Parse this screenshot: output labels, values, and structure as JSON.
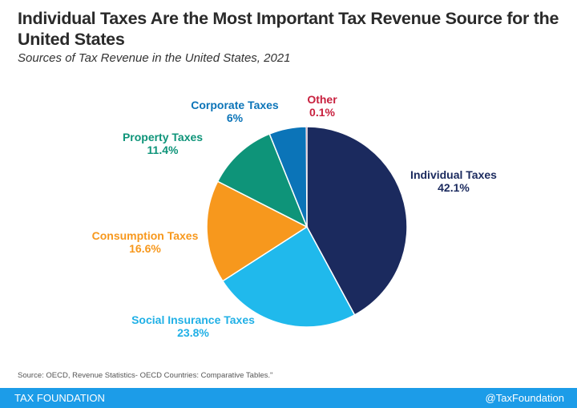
{
  "title": "Individual Taxes Are the Most Important Tax Revenue Source for the United States",
  "subtitle": "Sources of Tax Revenue in the United States, 2021",
  "chart_data": {
    "type": "pie",
    "start": "top, clockwise",
    "slices": [
      {
        "name": "Individual Taxes",
        "value": 42.1,
        "label": "42.1%",
        "color": "#1b2a5e"
      },
      {
        "name": "Social Insurance Taxes",
        "value": 23.8,
        "label": "23.8%",
        "color": "#20b9ec"
      },
      {
        "name": "Consumption Taxes",
        "value": 16.6,
        "label": "16.6%",
        "color": "#f7981d"
      },
      {
        "name": "Property Taxes",
        "value": 11.4,
        "label": "11.4%",
        "color": "#0e9479"
      },
      {
        "name": "Corporate Taxes",
        "value": 6,
        "label": "6%",
        "color": "#0b74b8"
      },
      {
        "name": "Other",
        "value": 0.1,
        "label": "0.1%",
        "color": "#c8203e"
      }
    ]
  },
  "source": "Source: OECD, Revenue Statistics- OECD Countries: Comparative Tables.\"",
  "footer": {
    "brand": "TAX FOUNDATION",
    "handle": "@TaxFoundation",
    "color": "#1c9ce8"
  }
}
